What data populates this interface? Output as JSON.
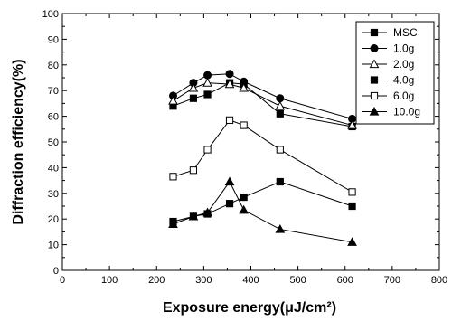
{
  "chart_data": {
    "type": "line",
    "title": "",
    "xlabel": "Exposure energy(μJ/cm²)",
    "ylabel": "Diffraction efficiency(%)",
    "xlim": [
      0,
      800
    ],
    "ylim": [
      0,
      100
    ],
    "xticks": [
      "0",
      "100",
      "200",
      "300",
      "400",
      "500",
      "600",
      "700",
      "800"
    ],
    "yticks": [
      "0",
      "10",
      "20",
      "30",
      "40",
      "50",
      "60",
      "70",
      "80",
      "90",
      "100"
    ],
    "grid": false,
    "legend_position": "top-right",
    "x": [
      235,
      278,
      308,
      355,
      385,
      462,
      615
    ],
    "series": [
      {
        "name": "MSC",
        "marker": "square-filled",
        "values": [
          64,
          67,
          68.5,
          73,
          72.5,
          61,
          56
        ]
      },
      {
        "name": "1.0g",
        "marker": "circle-filled",
        "values": [
          68,
          73,
          76,
          76.5,
          73.5,
          67,
          59
        ]
      },
      {
        "name": "2.0g",
        "marker": "triangle-open",
        "values": [
          66,
          71,
          73,
          72.5,
          71,
          64,
          56.5
        ]
      },
      {
        "name": "4.0g",
        "marker": "square-filled",
        "values": [
          19,
          21,
          22,
          26,
          28.5,
          34.5,
          25
        ]
      },
      {
        "name": "6.0g",
        "marker": "square-open",
        "values": [
          36.5,
          39,
          47,
          58.5,
          56.5,
          47,
          30.5
        ]
      },
      {
        "name": "10.0g",
        "marker": "triangle-filled",
        "values": [
          18,
          21,
          22.5,
          34.5,
          23.5,
          16,
          11
        ]
      }
    ]
  }
}
